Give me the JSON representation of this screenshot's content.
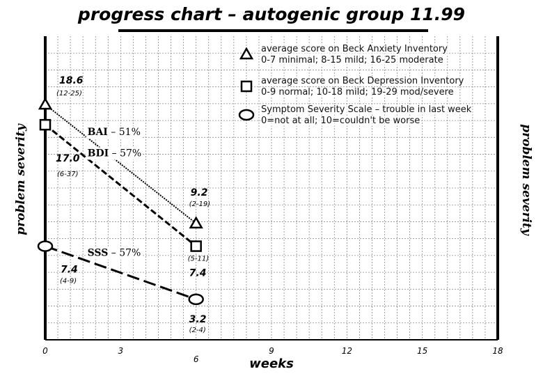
{
  "title": "progress chart – autogenic group 11.99",
  "ylabel_left": "problem severity",
  "ylabel_right": "problem severity",
  "xlabel": "weeks",
  "colors": {
    "line": "#000000",
    "grid": "#888888",
    "background": "#ffffff"
  },
  "chart_data": {
    "type": "line",
    "title": "progress chart – autogenic group 11.99",
    "xlabel": "weeks",
    "ylabel": "problem severity",
    "xlim": [
      0,
      18
    ],
    "ylim": [
      0,
      24
    ],
    "x_ticks": [
      "0",
      "3",
      "6",
      "9",
      "12",
      "15",
      "18"
    ],
    "grid": true,
    "legend_position": "top-right",
    "series": [
      {
        "key": "bai",
        "marker": "triangle",
        "line_style": "dotted",
        "legend": [
          "average score on Beck Anxiety Inventory",
          "0-7 minimal; 8-15 mild; 16-25 moderate"
        ],
        "x": [
          0,
          6
        ],
        "values": [
          18.6,
          9.2
        ],
        "value_labels": [
          "18.6",
          "9.2"
        ],
        "range_labels": [
          "(12-25)",
          "(2-19)"
        ],
        "change_label": {
          "name": "BAI",
          "text": " – 51%"
        }
      },
      {
        "key": "bdi",
        "marker": "square",
        "line_style": "dashed",
        "legend": [
          "average score on Beck Depression Inventory",
          "0-9 normal; 10-18 mild; 19-29 mod/severe"
        ],
        "x": [
          0,
          6
        ],
        "values": [
          17.0,
          7.4
        ],
        "value_labels": [
          "17.0",
          "7.4"
        ],
        "range_labels": [
          "(6-37)",
          "(5-11)"
        ],
        "change_label": {
          "name": "BDI",
          "text": " – 57%"
        }
      },
      {
        "key": "sss",
        "marker": "circle",
        "line_style": "longdash",
        "legend": [
          "Symptom Severity Scale – trouble in last week",
          "0=not at all; 10=couldn't be worse"
        ],
        "x": [
          0,
          6
        ],
        "values": [
          7.4,
          3.2
        ],
        "value_labels": [
          "7.4",
          "3.2"
        ],
        "range_labels": [
          "(4-9)",
          "(2-4)"
        ],
        "change_label": {
          "name": "SSS",
          "text": " – 57%"
        }
      }
    ]
  }
}
